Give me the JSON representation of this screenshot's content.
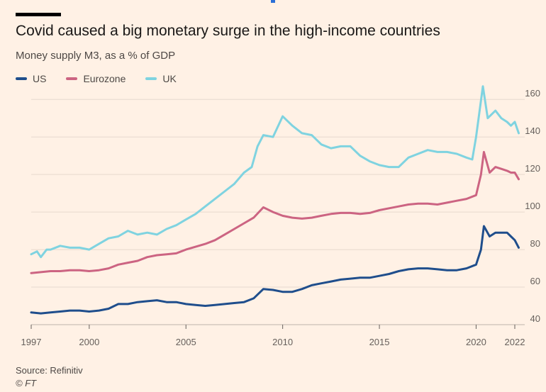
{
  "chart_data": {
    "type": "line",
    "title": "Covid caused a big monetary surge in the high-income countries",
    "subtitle": "Money supply M3, as a % of GDP",
    "xlabel": "",
    "ylabel": "",
    "xlim": [
      1997,
      2022
    ],
    "ylim": [
      40,
      165
    ],
    "x_ticks": [
      {
        "value": 1997,
        "label": "1997"
      },
      {
        "value": 2000,
        "label": "2000"
      },
      {
        "value": 2005,
        "label": "2005"
      },
      {
        "value": 2010,
        "label": "2010"
      },
      {
        "value": 2015,
        "label": "2015"
      },
      {
        "value": 2020,
        "label": "2020"
      },
      {
        "value": 2022,
        "label": "2022"
      }
    ],
    "y_ticks": [
      {
        "value": 40,
        "label": "40"
      },
      {
        "value": 60,
        "label": "60"
      },
      {
        "value": 80,
        "label": "80"
      },
      {
        "value": 100,
        "label": "100"
      },
      {
        "value": 120,
        "label": "120"
      },
      {
        "value": 140,
        "label": "140"
      },
      {
        "value": 160,
        "label": "160"
      }
    ],
    "grid": "horizontal",
    "legend_position": "top-left",
    "series": [
      {
        "name": "US",
        "color": "#1f4e8c",
        "points": [
          [
            1997,
            46.5
          ],
          [
            1997.5,
            46
          ],
          [
            1998,
            46.5
          ],
          [
            1998.5,
            47
          ],
          [
            1999,
            47.5
          ],
          [
            1999.5,
            47.5
          ],
          [
            2000,
            47
          ],
          [
            2000.5,
            47.5
          ],
          [
            2001,
            48.5
          ],
          [
            2001.5,
            51
          ],
          [
            2002,
            51
          ],
          [
            2002.5,
            52
          ],
          [
            2003,
            52.5
          ],
          [
            2003.5,
            53
          ],
          [
            2004,
            52
          ],
          [
            2004.5,
            52
          ],
          [
            2005,
            51
          ],
          [
            2005.5,
            50.5
          ],
          [
            2006,
            50
          ],
          [
            2006.5,
            50.5
          ],
          [
            2007,
            51
          ],
          [
            2007.5,
            51.5
          ],
          [
            2008,
            52
          ],
          [
            2008.5,
            54
          ],
          [
            2009,
            59
          ],
          [
            2009.5,
            58.5
          ],
          [
            2010,
            57.5
          ],
          [
            2010.5,
            57.5
          ],
          [
            2011,
            59
          ],
          [
            2011.5,
            61
          ],
          [
            2012,
            62
          ],
          [
            2012.5,
            63
          ],
          [
            2013,
            64
          ],
          [
            2013.5,
            64.5
          ],
          [
            2014,
            65
          ],
          [
            2014.5,
            65
          ],
          [
            2015,
            66
          ],
          [
            2015.5,
            67
          ],
          [
            2016,
            68.5
          ],
          [
            2016.5,
            69.5
          ],
          [
            2017,
            70
          ],
          [
            2017.5,
            70
          ],
          [
            2018,
            69.5
          ],
          [
            2018.5,
            69
          ],
          [
            2019,
            69
          ],
          [
            2019.5,
            70
          ],
          [
            2020,
            72
          ],
          [
            2020.25,
            80
          ],
          [
            2020.4,
            92.5
          ],
          [
            2020.7,
            87
          ],
          [
            2021,
            89
          ],
          [
            2021.3,
            89
          ],
          [
            2021.6,
            89
          ],
          [
            2021.8,
            87
          ],
          [
            2022,
            85
          ],
          [
            2022.2,
            81
          ]
        ]
      },
      {
        "name": "Eurozone",
        "color": "#cc6482",
        "points": [
          [
            1997,
            67.5
          ],
          [
            1997.5,
            68
          ],
          [
            1998,
            68.5
          ],
          [
            1998.5,
            68.5
          ],
          [
            1999,
            69
          ],
          [
            1999.5,
            69
          ],
          [
            2000,
            68.5
          ],
          [
            2000.5,
            69
          ],
          [
            2001,
            70
          ],
          [
            2001.5,
            72
          ],
          [
            2002,
            73
          ],
          [
            2002.5,
            74
          ],
          [
            2003,
            76
          ],
          [
            2003.5,
            77
          ],
          [
            2004,
            77.5
          ],
          [
            2004.5,
            78
          ],
          [
            2005,
            80
          ],
          [
            2005.5,
            81.5
          ],
          [
            2006,
            83
          ],
          [
            2006.5,
            85
          ],
          [
            2007,
            88
          ],
          [
            2007.5,
            91
          ],
          [
            2008,
            94
          ],
          [
            2008.5,
            97
          ],
          [
            2009,
            102.5
          ],
          [
            2009.5,
            100
          ],
          [
            2010,
            98
          ],
          [
            2010.5,
            97
          ],
          [
            2011,
            96.5
          ],
          [
            2011.5,
            97
          ],
          [
            2012,
            98
          ],
          [
            2012.5,
            99
          ],
          [
            2013,
            99.5
          ],
          [
            2013.5,
            99.5
          ],
          [
            2014,
            99
          ],
          [
            2014.5,
            99.5
          ],
          [
            2015,
            101
          ],
          [
            2015.5,
            102
          ],
          [
            2016,
            103
          ],
          [
            2016.5,
            104
          ],
          [
            2017,
            104.5
          ],
          [
            2017.5,
            104.5
          ],
          [
            2018,
            104
          ],
          [
            2018.5,
            105
          ],
          [
            2019,
            106
          ],
          [
            2019.5,
            107
          ],
          [
            2020,
            109
          ],
          [
            2020.25,
            120
          ],
          [
            2020.4,
            132
          ],
          [
            2020.7,
            121
          ],
          [
            2021,
            124
          ],
          [
            2021.3,
            123
          ],
          [
            2021.6,
            122
          ],
          [
            2021.8,
            121
          ],
          [
            2022,
            121
          ],
          [
            2022.2,
            117.5
          ]
        ]
      },
      {
        "name": "UK",
        "color": "#7fd3e0",
        "points": [
          [
            1997,
            77.5
          ],
          [
            1997.3,
            79
          ],
          [
            1997.5,
            76
          ],
          [
            1997.8,
            80
          ],
          [
            1998,
            80
          ],
          [
            1998.5,
            82
          ],
          [
            1999,
            81
          ],
          [
            1999.5,
            81
          ],
          [
            2000,
            80
          ],
          [
            2000.5,
            83
          ],
          [
            2001,
            86
          ],
          [
            2001.5,
            87
          ],
          [
            2002,
            90
          ],
          [
            2002.5,
            88
          ],
          [
            2003,
            89
          ],
          [
            2003.5,
            88
          ],
          [
            2004,
            91
          ],
          [
            2004.5,
            93
          ],
          [
            2005,
            96
          ],
          [
            2005.5,
            99
          ],
          [
            2006,
            103
          ],
          [
            2006.5,
            107
          ],
          [
            2007,
            111
          ],
          [
            2007.5,
            115
          ],
          [
            2008,
            121
          ],
          [
            2008.4,
            124
          ],
          [
            2008.7,
            135
          ],
          [
            2009,
            141
          ],
          [
            2009.5,
            140
          ],
          [
            2010,
            151
          ],
          [
            2010.5,
            146
          ],
          [
            2011,
            142
          ],
          [
            2011.5,
            141
          ],
          [
            2012,
            136
          ],
          [
            2012.5,
            134
          ],
          [
            2013,
            135
          ],
          [
            2013.5,
            135
          ],
          [
            2014,
            130
          ],
          [
            2014.5,
            127
          ],
          [
            2015,
            125
          ],
          [
            2015.5,
            124
          ],
          [
            2016,
            124
          ],
          [
            2016.5,
            129
          ],
          [
            2017,
            131
          ],
          [
            2017.5,
            133
          ],
          [
            2018,
            132
          ],
          [
            2018.5,
            132
          ],
          [
            2019,
            131
          ],
          [
            2019.5,
            129
          ],
          [
            2019.8,
            128
          ],
          [
            2020,
            140
          ],
          [
            2020.35,
            167
          ],
          [
            2020.6,
            150
          ],
          [
            2021,
            154
          ],
          [
            2021.3,
            150
          ],
          [
            2021.6,
            148
          ],
          [
            2021.8,
            146
          ],
          [
            2022,
            148
          ],
          [
            2022.2,
            142
          ]
        ]
      }
    ]
  },
  "footer": {
    "source": "Source: Refinitiv",
    "credit": "© FT"
  }
}
